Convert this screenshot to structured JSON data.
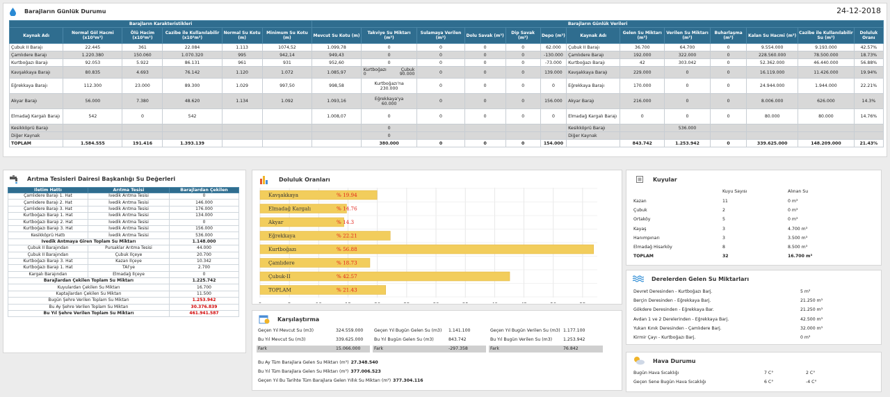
{
  "header": {
    "title": "Barajların Günlük Durumu",
    "date": "24-12-2018"
  },
  "main_table": {
    "group1": "Barajların Karakteristikleri",
    "group2": "Barajların Günlük Verileri",
    "headers_left": [
      "Kaynak Adı",
      "Normal Göl Hacmi (x10³m³)",
      "Ölü Hacim (x10³m³)",
      "Cazibe ile Kullanılabilir (x10³m³)",
      "Normal Su Kotu (m)",
      "Minimum Su Kotu (m)",
      "Mevcut Su Kotu (m)",
      "Takviye Su Miktarı (m³)",
      "Sulamaya Verilen (m³)",
      "Dolu Savak (m³)",
      "Dip Savak (m³)",
      "Depo (m³)"
    ],
    "headers_right": [
      "Kaynak Adı",
      "Gelen Su Miktarı (m³)",
      "Verilen Su Miktarı (m³)",
      "Buharlaşma (m³)",
      "Kalan Su Hacmi (m³)",
      "Cazibe ile Kullanılabilir Su (m³)",
      "Doluluk Oranı"
    ],
    "rows": [
      {
        "c": [
          "Çubuk II Barajı",
          "22.445",
          "361",
          "22.084",
          "1.113",
          "1074,52",
          "1.099,78",
          "0",
          "0",
          "0",
          "0",
          "62.000",
          "Çubuk II Barajı",
          "36.700",
          "64.700",
          "0",
          "9.554.000",
          "9.193.000",
          "42.57%"
        ],
        "cls": "w",
        "h": 11
      },
      {
        "c": [
          "Çamlıdere Barajı",
          "1.220.380",
          "150.060",
          "1.070.320",
          "995",
          "942,14",
          "949,43",
          "0",
          "0",
          "0",
          "0",
          "-130.000",
          "Çamlıdere Barajı",
          "192.000",
          "322.000",
          "0",
          "228.560.000",
          "78.500.000",
          "18.73%"
        ],
        "cls": "s",
        "h": 11
      },
      {
        "c": [
          "Kurtboğazı Barajı",
          "92.053",
          "5.922",
          "86.131",
          "961",
          "931",
          "952,60",
          "0",
          "0",
          "0",
          "0",
          "-73.000",
          "Kurtboğazı Barajı",
          "42",
          "303.042",
          "0",
          "52.362.000",
          "46.440.000",
          "56.88%"
        ],
        "cls": "w",
        "h": 11
      },
      {
        "c": [
          "Kavşakkaya Barajı",
          "80.835",
          "4.693",
          "76.142",
          "1.120",
          "1.072",
          "1.085,97",
          "",
          "0",
          "0",
          "0",
          "139.000",
          "Kavşakkaya Barajı",
          "229.000",
          "0",
          "0",
          "16.119.000",
          "11.426.000",
          "19.94%"
        ],
        "cls": "s",
        "h": 17,
        "takviye": {
          "a": "Kurtboğazı",
          "b": "Çubuk",
          "c": "0",
          "d": "90.000"
        }
      },
      {
        "c": [
          "Eğrekkaya Barajı",
          "112.300",
          "23.000",
          "89.300",
          "1.029",
          "997,50",
          "998,58",
          "",
          "0",
          "0",
          "0",
          "0",
          "Eğrekkaya Barajı",
          "170.000",
          "0",
          "0",
          "24.944.000",
          "1.944.000",
          "22.21%"
        ],
        "cls": "w",
        "h": 22,
        "takviye2": [
          "Kurtboğazı'na",
          "230.000"
        ]
      },
      {
        "c": [
          "Akyar Barajı",
          "56.000",
          "7.380",
          "48.620",
          "1.134",
          "1.092",
          "1.093,16",
          "",
          "0",
          "0",
          "0",
          "156.000",
          "Akyar Barajı",
          "216.000",
          "0",
          "0",
          "8.006.000",
          "626.000",
          "14.3%"
        ],
        "cls": "s",
        "h": 22,
        "takviye2": [
          "Eğrekkaya'ya",
          "60.000"
        ]
      },
      {
        "c": [
          "Elmadağ Kargalı Barajı",
          "542",
          "0",
          "542",
          "",
          "",
          "1.008,07",
          "0",
          "0",
          "0",
          "0",
          "0",
          "Elmadağ Kargalı Barajı",
          "0",
          "0",
          "0",
          "80.000",
          "80.000",
          "14.76%"
        ],
        "cls": "w",
        "h": 22
      },
      {
        "c": [
          "Kesikköprü Barajı",
          "",
          "",
          "",
          "",
          "",
          "",
          "0",
          "",
          "",
          "",
          "",
          "Kesikköprü Barajı",
          "",
          "536.000",
          "",
          "",
          "",
          ""
        ],
        "cls": "s",
        "h": 11
      },
      {
        "c": [
          "Diğer Kaynak",
          "",
          "",
          "",
          "",
          "",
          "",
          "0",
          "",
          "",
          "",
          "",
          "Diğer Kaynak",
          "",
          "",
          "",
          "",
          "",
          ""
        ],
        "cls": "s",
        "h": 11
      },
      {
        "c": [
          "TOPLAM",
          "1.584.555",
          "191.416",
          "1.393.139",
          "",
          "",
          "",
          "380.000",
          "0",
          "0",
          "0",
          "154.000",
          "",
          "843.742",
          "1.253.942",
          "0",
          "339.625.000",
          "148.209.000",
          "21.43%"
        ],
        "cls": "tot",
        "h": 11
      }
    ]
  },
  "aritma": {
    "title": "Arıtma Tesisleri Dairesi Başkanlığı Su Değerleri",
    "headers": [
      "İletim Hattı",
      "Arıtma Tesisi",
      "Barajlardan Çekilen"
    ],
    "rows": [
      [
        "Çamlıdere Barajı 1. Hat",
        "İvedik Arıtma Tesisi",
        "0"
      ],
      [
        "Çamlıdere Barajı 2. Hat",
        "İvedik Arıtma Tesisi",
        "146.000"
      ],
      [
        "Çamlıdere Barajı 3. Hat",
        "İvedik Arıtma Tesisi",
        "176.000"
      ],
      [
        "Kurtboğazı Barajı 1. Hat",
        "İvedik Arıtma Tesisi",
        "134.000"
      ],
      [
        "Kurtboğazı Barajı 2. Hat",
        "İvedik Arıtma Tesisi",
        "0"
      ],
      [
        "Kurtboğazı Barajı 3. Hat",
        "İvedik Arıtma Tesisi",
        "156.000"
      ],
      [
        "Kesikköprü Hattı",
        "İvedik Arıtma Tesisi",
        "536.000"
      ]
    ],
    "ivedik_label": "İvedik Antmaya Giren Toplam Su Miktarı",
    "ivedik_value": "1.148.000",
    "rows2": [
      [
        "Çubuk II Barajından",
        "Pursaklar Arıtma Tesisi",
        "44.000"
      ],
      [
        "Çubuk II Barajından",
        "Çubuk İlçeye",
        "20.700"
      ],
      [
        "Kurtboğazı Barajı 3. Hat",
        "Kazan İlçeye",
        "10.342"
      ],
      [
        "Kurtboğazı Barajı 1. Hat",
        "TAİ'ye",
        "2.700"
      ],
      [
        "Kargalı Barajından",
        "Elmadağ İlçeye",
        "0"
      ]
    ],
    "summary": [
      {
        "label": "Barajlardan Çekilen Toplam Su Miktarı",
        "value": "1.225.742",
        "bold": true,
        "red": false
      },
      {
        "label": "Kuyulardan Çekilen Su Miktarı",
        "value": "16.700",
        "bold": false,
        "red": false
      },
      {
        "label": "Kaptajlardan Çekilen Su Miktarı",
        "value": "11.500",
        "bold": false,
        "red": false
      },
      {
        "label": "Bugün Şehre Verilen Toplam Su Miktarı",
        "value": "1.253.942",
        "bold": false,
        "red": true
      },
      {
        "label": "Bu Ay Şehre Verilen Toplam Su Miktarı",
        "value": "30.376.839",
        "bold": false,
        "red": true
      },
      {
        "label": "Bu Yıl Şehre Verilen Toplam Su Miktarı",
        "value": "461.941.587",
        "bold": true,
        "red": true
      }
    ]
  },
  "doluluk": {
    "title": "Doluluk Oranları"
  },
  "chart_data": {
    "type": "bar",
    "orientation": "horizontal",
    "categories": [
      "Kavşakkaya",
      "Elmadağ Kargalı",
      "Akyar",
      "Eğrekkaya",
      "Kurtboğazı",
      "Çamlıdere",
      "Çubuk-II",
      "TOPLAM"
    ],
    "labels": [
      "% 19.94",
      "% 14.76",
      "% 14.3",
      "% 22.21",
      "% 56.88",
      "% 18.73",
      "% 42.57",
      "% 21.43"
    ],
    "values": [
      19.94,
      14.76,
      14.3,
      22.21,
      56.88,
      18.73,
      42.57,
      21.43
    ],
    "xticks": [
      "0",
      "5",
      "10",
      "15",
      "20",
      "25",
      "30",
      "35",
      "40",
      "45",
      "50",
      "55"
    ],
    "xlim": [
      0,
      57.5
    ],
    "bar_color": "#f2cd5c",
    "label_color": "#e2231a",
    "grid": true
  },
  "karsilastirma": {
    "title": "Karşılaştırma",
    "cols": [
      [
        [
          "Geçen Yıl Mevcut Su (m3)",
          "324.559.000"
        ],
        [
          "Bu Yıl Mevcut Su (m3)",
          "339.625.000"
        ],
        [
          "Fark",
          "15.066.000"
        ]
      ],
      [
        [
          "Geçen Yıl Bugün Gelen Su (m3)",
          "1.141.100"
        ],
        [
          "Bu Yıl Bugün Gelen Su (m3)",
          "843.742"
        ],
        [
          "Fark",
          "-297.358"
        ]
      ],
      [
        [
          "Geçen Yıl Bugün Verilen Su (m3)",
          "1.177.100"
        ],
        [
          "Bu Yıl Bugün Verilen Su (m3)",
          "1.253.942"
        ],
        [
          "Fark",
          "76.842"
        ]
      ]
    ],
    "totals": [
      [
        "Bu Ay Tüm Barajlara Gelen Su Miktarı (m³)",
        "27.348.540"
      ],
      [
        "Bu Yıl Tüm Barajlara Gelen Su Miktarı (m³)",
        "377.006.523"
      ],
      [
        "Geçen Yıl Bu Tarihte Tüm Barajlara Gelen Yıllık Su Miktarı (m³)",
        "377.304.116"
      ]
    ]
  },
  "kuyular": {
    "title": "Kuyular",
    "h1": "Kuyu Sayısı",
    "h2": "Alınan Su",
    "rows": [
      [
        "Kazan",
        "11",
        "0 m³"
      ],
      [
        "Çubuk",
        "2",
        "0 m³"
      ],
      [
        "Ortaköy",
        "5",
        "0 m³"
      ],
      [
        "Kayaş",
        "3",
        "4.700 m³"
      ],
      [
        "Hanımpınarı",
        "3",
        "3.500 m³"
      ],
      [
        "Elmadağ Hisarköy",
        "8",
        "8.500 m³"
      ],
      [
        "TOPLAM",
        "32",
        "16.700 m³"
      ]
    ]
  },
  "dereler": {
    "title": "Derelerden Gelen Su Miktarları",
    "rows": [
      [
        "Devret Deresinden - Kurtboğazı Barj.",
        "5 m³"
      ],
      [
        "Berçin Deresinden - Eğrekkaya Barj.",
        "21.250 m³"
      ],
      [
        "Gökdere Deresinden - Eğrekkaya Bar.",
        "21.250 m³"
      ],
      [
        "Avdan 1 ve 2 Derelerinden - Eğrekkaya Barj.",
        "42.500 m³"
      ],
      [
        "Yukarı Kınık Deresinden - Çamlıdere Barj.",
        "32.000 m³"
      ],
      [
        "Kirmir Çayı - Kurtboğazı Barj.",
        "0 m³"
      ]
    ]
  },
  "hava": {
    "title": "Hava Durumu",
    "rows": [
      [
        "Bugün Hava Sıcaklığı",
        "7 C°",
        "2 C°"
      ],
      [
        "Geçen Sene Bugün Hava Sıcaklığı",
        "6 C°",
        "-4 C°"
      ]
    ]
  }
}
